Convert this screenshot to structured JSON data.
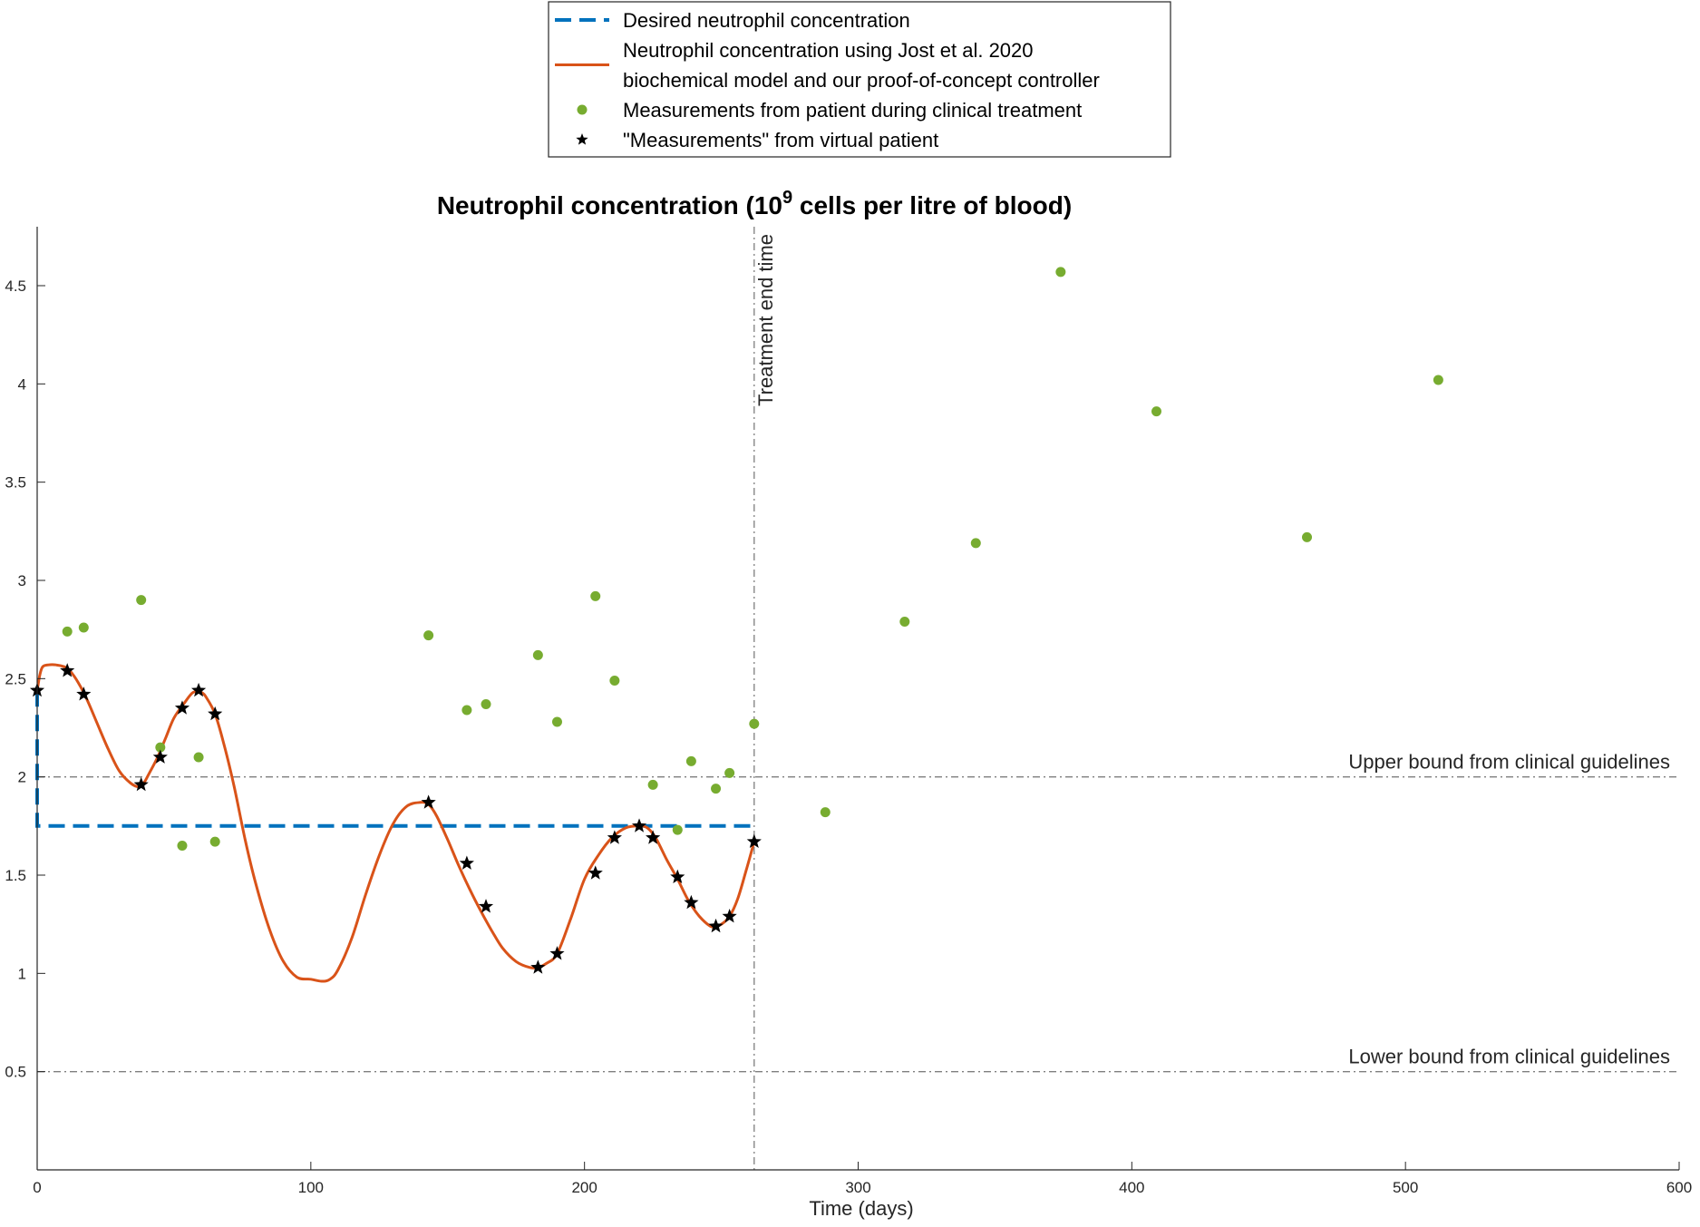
{
  "chart_data": {
    "type": "line",
    "title": {
      "prefix": "Neutrophil concentration (10",
      "superscript": "9",
      "suffix": " cells per litre of blood)"
    },
    "xlabel": "Time (days)",
    "ylabel": "",
    "xlim": [
      0,
      600
    ],
    "ylim": [
      0,
      4.8
    ],
    "xticks": [
      0,
      100,
      200,
      300,
      400,
      500,
      600
    ],
    "yticks": [
      0.5,
      1,
      1.5,
      2,
      2.5,
      3,
      3.5,
      4,
      4.5
    ],
    "xtick_labels": [
      "0",
      "100",
      "200",
      "300",
      "400",
      "500",
      "600"
    ],
    "ytick_labels": [
      "0.5",
      "1",
      "1.5",
      "2",
      "2.5",
      "3",
      "3.5",
      "4",
      "4.5"
    ],
    "legend_position": "top-center, outside plot",
    "legend": [
      {
        "key": "desired",
        "lines": [
          "Desired neutrophil concentration"
        ],
        "marker": "dashed-line",
        "color": "#0072BD"
      },
      {
        "key": "model",
        "lines": [
          "Neutrophil concentration using Jost et al. 2020",
          "biochemical model and our proof-of-concept controller"
        ],
        "marker": "solid-line",
        "color": "#D95319"
      },
      {
        "key": "clinical",
        "lines": [
          "Measurements from patient during clinical treatment"
        ],
        "marker": "dot",
        "color": "#77AC30"
      },
      {
        "key": "virtual",
        "lines": [
          "\"Measurements\" from virtual patient"
        ],
        "marker": "star",
        "color": "#000000"
      }
    ],
    "reference_lines": {
      "upper": {
        "y": 2,
        "label": "Upper bound from clinical guidelines"
      },
      "lower": {
        "y": 0.5,
        "label": "Lower bound from clinical guidelines"
      },
      "treatment_end": {
        "x": 262,
        "label": "Treatment end time"
      }
    },
    "series": {
      "desired": {
        "x": [
          0,
          0,
          262
        ],
        "y": [
          2.44,
          1.75,
          1.75
        ]
      },
      "model": {
        "x": [
          0,
          1,
          2,
          4,
          7,
          10,
          12,
          15,
          18,
          22,
          26,
          30,
          34,
          37,
          39,
          41,
          44,
          47,
          50,
          54,
          57,
          60,
          62,
          65,
          68,
          72,
          76,
          80,
          85,
          90,
          95,
          100,
          104,
          107,
          110,
          115,
          120,
          125,
          130,
          135,
          140,
          143,
          146,
          150,
          154,
          158,
          162,
          166,
          170,
          175,
          180,
          183,
          186,
          190,
          195,
          200,
          205,
          210,
          215,
          220,
          223,
          226,
          230,
          234,
          238,
          242,
          246,
          248,
          250,
          253,
          256,
          259,
          262
        ],
        "y": [
          2.44,
          2.52,
          2.56,
          2.57,
          2.57,
          2.56,
          2.54,
          2.48,
          2.4,
          2.27,
          2.14,
          2.03,
          1.97,
          1.95,
          1.97,
          2.02,
          2.1,
          2.2,
          2.3,
          2.38,
          2.43,
          2.43,
          2.4,
          2.32,
          2.18,
          1.95,
          1.68,
          1.45,
          1.22,
          1.06,
          0.98,
          0.97,
          0.96,
          0.97,
          1.02,
          1.18,
          1.4,
          1.6,
          1.76,
          1.85,
          1.87,
          1.86,
          1.8,
          1.68,
          1.55,
          1.43,
          1.32,
          1.22,
          1.13,
          1.06,
          1.03,
          1.03,
          1.05,
          1.1,
          1.28,
          1.48,
          1.6,
          1.69,
          1.74,
          1.75,
          1.74,
          1.69,
          1.58,
          1.48,
          1.37,
          1.29,
          1.24,
          1.24,
          1.25,
          1.29,
          1.38,
          1.52,
          1.67
        ]
      },
      "clinical": {
        "x": [
          11,
          17,
          38,
          45,
          53,
          59,
          65,
          143,
          157,
          164,
          183,
          190,
          204,
          211,
          225,
          234,
          239,
          248,
          253,
          262,
          288,
          317,
          343,
          374,
          409,
          464,
          512
        ],
        "y": [
          2.74,
          2.76,
          2.9,
          2.15,
          1.65,
          2.1,
          1.67,
          2.72,
          2.34,
          2.37,
          2.62,
          2.28,
          2.92,
          2.49,
          1.96,
          1.73,
          2.08,
          1.94,
          2.02,
          2.27,
          1.82,
          2.79,
          3.19,
          4.57,
          3.86,
          3.22,
          4.02
        ]
      },
      "virtual": {
        "x": [
          0,
          11,
          17,
          38,
          45,
          53,
          59,
          65,
          143,
          157,
          164,
          183,
          190,
          204,
          211,
          220,
          225,
          234,
          239,
          248,
          253,
          262
        ],
        "y": [
          2.44,
          2.54,
          2.42,
          1.96,
          2.1,
          2.35,
          2.44,
          2.32,
          1.87,
          1.56,
          1.34,
          1.03,
          1.1,
          1.51,
          1.69,
          1.75,
          1.69,
          1.49,
          1.36,
          1.24,
          1.29,
          1.67
        ]
      }
    }
  }
}
